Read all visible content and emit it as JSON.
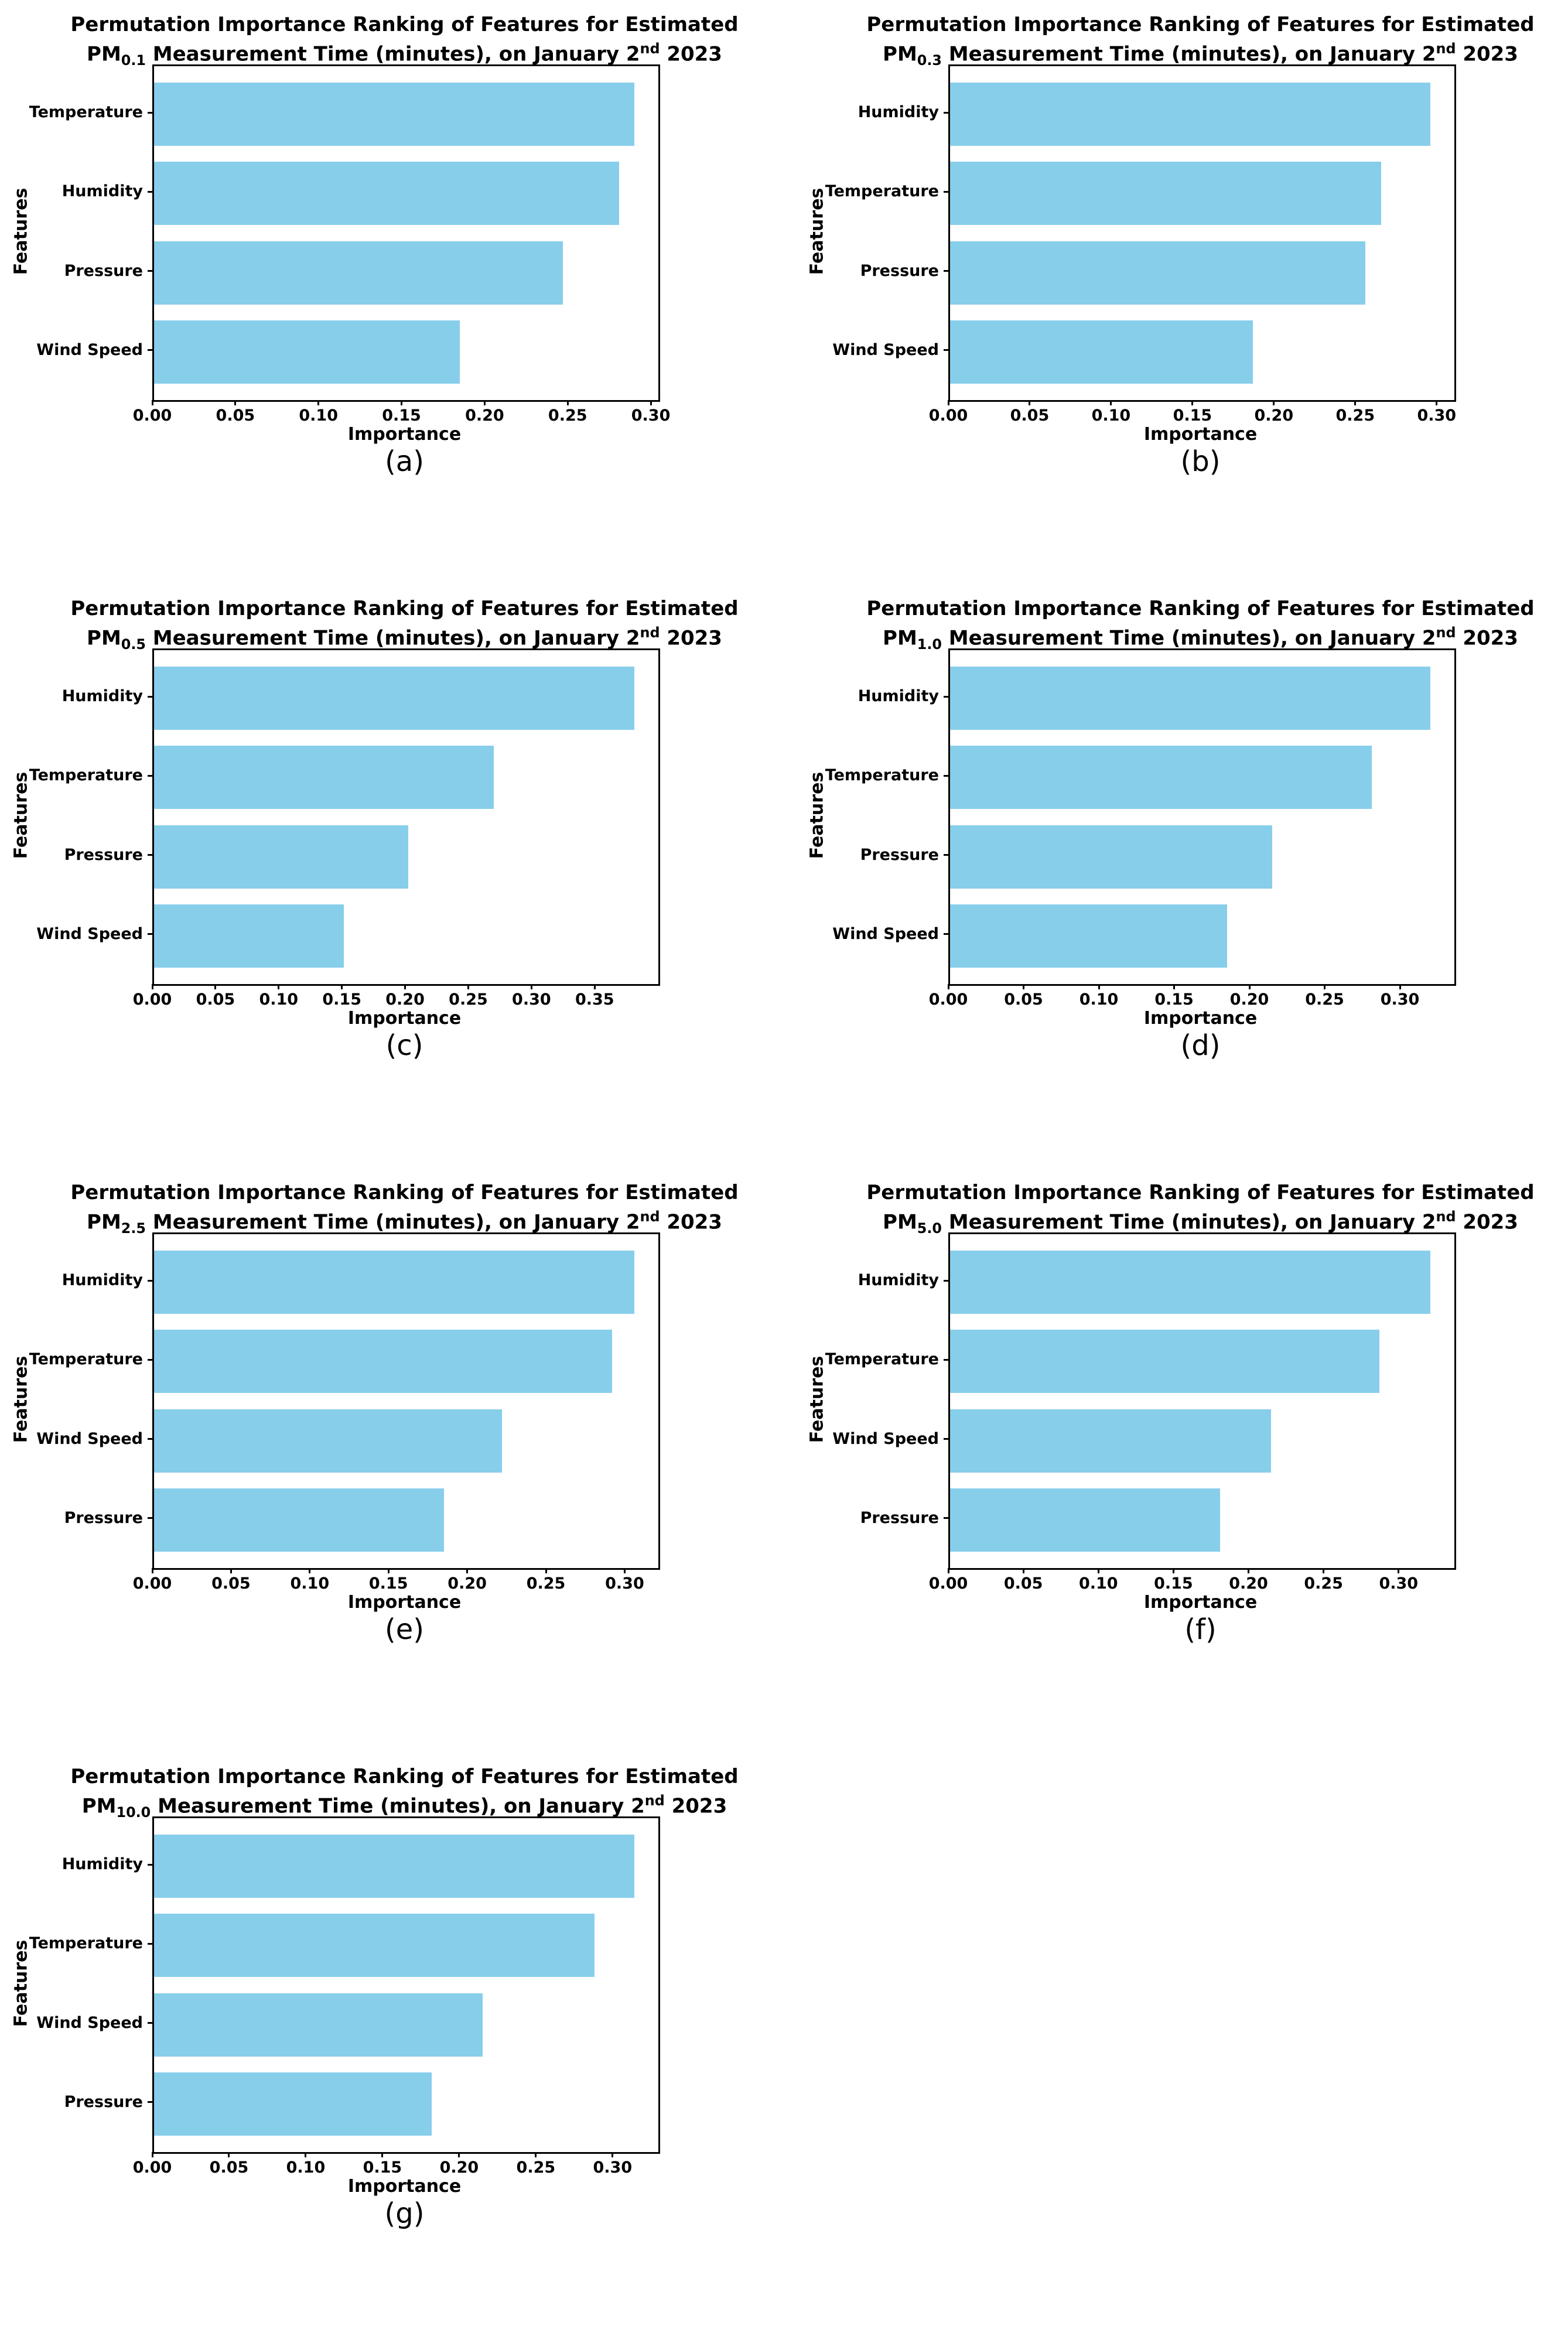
{
  "figure": {
    "background_color": "#ffffff",
    "text_color": "#000000",
    "bar_color": "#87CEEB",
    "spine_color": "#000000"
  },
  "chart_data": [
    {
      "id": "a",
      "type": "bar",
      "orientation": "horizontal",
      "caption": "(a)",
      "title_line1": "Permutation Importance Ranking of Features for Estimated",
      "title_pm": "PM",
      "title_pm_sub": "0.1",
      "title_mid": " Measurement Time (minutes), on January 2",
      "title_sup": "nd",
      "title_tail": " 2023",
      "xlabel": "Importance",
      "ylabel": "Features",
      "categories": [
        "Temperature",
        "Humidity",
        "Pressure",
        "Wind Speed"
      ],
      "values": [
        0.289,
        0.28,
        0.246,
        0.184
      ],
      "xlim": [
        0,
        0.3035
      ],
      "xticks": [
        0,
        0.05,
        0.1,
        0.15,
        0.2,
        0.25,
        0.3
      ],
      "xtick_labels": [
        "0.00",
        "0.05",
        "0.10",
        "0.15",
        "0.20",
        "0.25",
        "0.30"
      ],
      "grid": false,
      "legend": false
    },
    {
      "id": "b",
      "type": "bar",
      "orientation": "horizontal",
      "caption": "(b)",
      "title_line1": "Permutation Importance Ranking of Features for Estimated",
      "title_pm": "PM",
      "title_pm_sub": "0.3",
      "title_mid": " Measurement Time (minutes), on January 2",
      "title_sup": "nd",
      "title_tail": " 2023",
      "xlabel": "Importance",
      "ylabel": "Features",
      "categories": [
        "Humidity",
        "Temperature",
        "Pressure",
        "Wind Speed"
      ],
      "values": [
        0.295,
        0.265,
        0.255,
        0.186
      ],
      "xlim": [
        0,
        0.3098
      ],
      "xticks": [
        0,
        0.05,
        0.1,
        0.15,
        0.2,
        0.25,
        0.3
      ],
      "xtick_labels": [
        "0.00",
        "0.05",
        "0.10",
        "0.15",
        "0.20",
        "0.25",
        "0.30"
      ],
      "grid": false,
      "legend": false
    },
    {
      "id": "c",
      "type": "bar",
      "orientation": "horizontal",
      "caption": "(c)",
      "title_line1": "Permutation Importance Ranking of Features for Estimated",
      "title_pm": "PM",
      "title_pm_sub": "0.5",
      "title_mid": " Measurement Time (minutes), on January 2",
      "title_sup": "nd",
      "title_tail": " 2023",
      "xlabel": "Importance",
      "ylabel": "Features",
      "categories": [
        "Humidity",
        "Temperature",
        "Pressure",
        "Wind Speed"
      ],
      "values": [
        0.38,
        0.269,
        0.201,
        0.15
      ],
      "xlim": [
        0,
        0.399
      ],
      "xticks": [
        0,
        0.05,
        0.1,
        0.15,
        0.2,
        0.25,
        0.3,
        0.35
      ],
      "xtick_labels": [
        "0.00",
        "0.05",
        "0.10",
        "0.15",
        "0.20",
        "0.25",
        "0.30",
        "0.35"
      ],
      "grid": false,
      "legend": false
    },
    {
      "id": "d",
      "type": "bar",
      "orientation": "horizontal",
      "caption": "(d)",
      "title_line1": "Permutation Importance Ranking of Features for Estimated",
      "title_pm": "PM",
      "title_pm_sub": "1.0",
      "title_mid": " Measurement Time (minutes), on January 2",
      "title_sup": "nd",
      "title_tail": " 2023",
      "xlabel": "Importance",
      "ylabel": "Features",
      "categories": [
        "Humidity",
        "Temperature",
        "Pressure",
        "Wind Speed"
      ],
      "values": [
        0.319,
        0.28,
        0.214,
        0.184
      ],
      "xlim": [
        0,
        0.335
      ],
      "xticks": [
        0,
        0.05,
        0.1,
        0.15,
        0.2,
        0.25,
        0.3
      ],
      "xtick_labels": [
        "0.00",
        "0.05",
        "0.10",
        "0.15",
        "0.20",
        "0.25",
        "0.30"
      ],
      "grid": false,
      "legend": false
    },
    {
      "id": "e",
      "type": "bar",
      "orientation": "horizontal",
      "caption": "(e)",
      "title_line1": "Permutation Importance Ranking of Features for Estimated",
      "title_pm": "PM",
      "title_pm_sub": "2.5",
      "title_mid": " Measurement Time (minutes), on January 2",
      "title_sup": "nd",
      "title_tail": " 2023",
      "xlabel": "Importance",
      "ylabel": "Features",
      "categories": [
        "Humidity",
        "Temperature",
        "Wind Speed",
        "Pressure"
      ],
      "values": [
        0.305,
        0.291,
        0.221,
        0.184
      ],
      "xlim": [
        0,
        0.3203
      ],
      "xticks": [
        0,
        0.05,
        0.1,
        0.15,
        0.2,
        0.25,
        0.3
      ],
      "xtick_labels": [
        "0.00",
        "0.05",
        "0.10",
        "0.15",
        "0.20",
        "0.25",
        "0.30"
      ],
      "grid": false,
      "legend": false
    },
    {
      "id": "f",
      "type": "bar",
      "orientation": "horizontal",
      "caption": "(f)",
      "title_line1": "Permutation Importance Ranking of Features for Estimated",
      "title_pm": "PM",
      "title_pm_sub": "5.0",
      "title_mid": " Measurement Time (minutes), on January 2",
      "title_sup": "nd",
      "title_tail": " 2023",
      "xlabel": "Importance",
      "ylabel": "Features",
      "categories": [
        "Humidity",
        "Temperature",
        "Wind Speed",
        "Pressure"
      ],
      "values": [
        0.32,
        0.286,
        0.214,
        0.18
      ],
      "xlim": [
        0,
        0.336
      ],
      "xticks": [
        0,
        0.05,
        0.1,
        0.15,
        0.2,
        0.25,
        0.3
      ],
      "xtick_labels": [
        "0.00",
        "0.05",
        "0.10",
        "0.15",
        "0.20",
        "0.25",
        "0.30"
      ],
      "grid": false,
      "legend": false
    },
    {
      "id": "g",
      "type": "bar",
      "orientation": "horizontal",
      "caption": "(g)",
      "title_line1": "Permutation Importance Ranking of Features for Estimated",
      "title_pm": "PM",
      "title_pm_sub": "10.0",
      "title_mid": " Measurement Time (minutes), on January 2",
      "title_sup": "nd",
      "title_tail": " 2023",
      "xlabel": "Importance",
      "ylabel": "Features",
      "categories": [
        "Humidity",
        "Temperature",
        "Wind Speed",
        "Pressure"
      ],
      "values": [
        0.313,
        0.287,
        0.214,
        0.181
      ],
      "xlim": [
        0,
        0.3287
      ],
      "xticks": [
        0,
        0.05,
        0.1,
        0.15,
        0.2,
        0.25,
        0.3
      ],
      "xtick_labels": [
        "0.00",
        "0.05",
        "0.10",
        "0.15",
        "0.20",
        "0.25",
        "0.30"
      ],
      "grid": false,
      "legend": false
    }
  ]
}
